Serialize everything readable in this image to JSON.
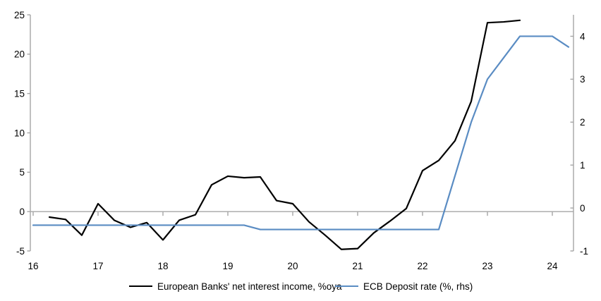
{
  "chart_data": {
    "type": "line",
    "title": "",
    "xlabel": "",
    "ylabel_left": "",
    "ylabel_right": "",
    "grid": "zero-line-only",
    "legend_position": "bottom",
    "axis_color": "#a6a6a6",
    "x_axis": {
      "ticks": [
        16,
        17,
        18,
        19,
        20,
        21,
        22,
        23,
        24
      ],
      "range": [
        15.95,
        24.35
      ]
    },
    "left_axis": {
      "ticks": [
        -5,
        0,
        5,
        10,
        15,
        20,
        25
      ],
      "range": [
        -5,
        25
      ]
    },
    "right_axis": {
      "ticks": [
        -1,
        0,
        1,
        2,
        3,
        4
      ],
      "range": [
        -1,
        4.5
      ]
    },
    "series": [
      {
        "name": "European Banks' net interest income, %oya",
        "axis": "left",
        "color": "#000000",
        "x": [
          16.25,
          16.5,
          16.75,
          17.0,
          17.25,
          17.5,
          17.75,
          18.0,
          18.25,
          18.5,
          18.75,
          19.0,
          19.25,
          19.5,
          19.75,
          20.0,
          20.25,
          20.5,
          20.75,
          21.0,
          21.25,
          21.5,
          21.75,
          22.0,
          22.25,
          22.5,
          22.75,
          23.0,
          23.25,
          23.5
        ],
        "y": [
          -0.7,
          -1.0,
          -3.0,
          1.0,
          -1.1,
          -2.0,
          -1.4,
          -3.6,
          -1.1,
          -0.4,
          3.4,
          4.5,
          4.3,
          4.4,
          1.4,
          1.0,
          -1.3,
          -3.0,
          -4.8,
          -4.7,
          -2.7,
          -1.2,
          0.4,
          5.2,
          6.5,
          9.0,
          14.0,
          24.0,
          24.1,
          24.3
        ]
      },
      {
        "name": "ECB Deposit rate (%, rhs)",
        "axis": "right",
        "color": "#5a8cc3",
        "x": [
          16.0,
          16.25,
          16.5,
          16.75,
          17.0,
          17.25,
          17.5,
          17.75,
          18.0,
          18.25,
          18.5,
          18.75,
          19.0,
          19.25,
          19.5,
          19.75,
          20.0,
          20.25,
          20.5,
          20.75,
          21.0,
          21.25,
          21.5,
          21.75,
          22.0,
          22.25,
          22.5,
          22.75,
          23.0,
          23.25,
          23.5,
          23.75,
          24.0,
          24.25
        ],
        "y": [
          -0.4,
          -0.4,
          -0.4,
          -0.4,
          -0.4,
          -0.4,
          -0.4,
          -0.4,
          -0.4,
          -0.4,
          -0.4,
          -0.4,
          -0.4,
          -0.4,
          -0.5,
          -0.5,
          -0.5,
          -0.5,
          -0.5,
          -0.5,
          -0.5,
          -0.5,
          -0.5,
          -0.5,
          -0.5,
          -0.5,
          0.75,
          2.0,
          3.0,
          3.5,
          4.0,
          4.0,
          4.0,
          3.75
        ]
      }
    ]
  }
}
